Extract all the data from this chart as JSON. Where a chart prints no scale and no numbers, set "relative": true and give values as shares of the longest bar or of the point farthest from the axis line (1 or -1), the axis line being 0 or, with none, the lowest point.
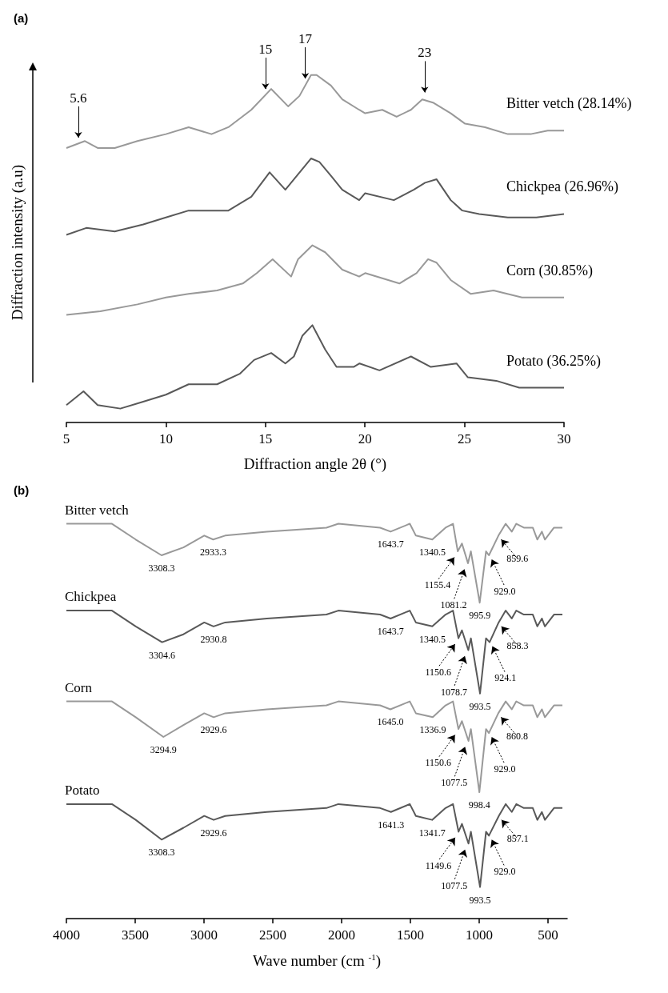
{
  "chart_data": [
    {
      "type": "line",
      "title": "(a)",
      "xlabel": "Diffraction angle 2θ (°)",
      "ylabel": "Diffraction intensity (a.u)",
      "relative": true,
      "xlim": [
        5,
        30
      ],
      "xticks": [
        5,
        10,
        15,
        20,
        25,
        30
      ],
      "series": [
        {
          "name": "Bitter vetch (28.14%)",
          "color": "#999999",
          "x": [
            5,
            5.93,
            6.57,
            7.43,
            8.57,
            10,
            11.14,
            12.29,
            13.14,
            14.29,
            15.29,
            16.14,
            16.71,
            17.29,
            17.57,
            18.29,
            18.86,
            19.71,
            20.01,
            20.87,
            21.59,
            22.31,
            22.88,
            23.45,
            24.31,
            25.03,
            26.03,
            27.18,
            28.32,
            29.18,
            30
          ],
          "values": [
            0.79,
            0.81,
            0.79,
            0.79,
            0.81,
            0.83,
            0.85,
            0.83,
            0.85,
            0.9,
            0.96,
            0.91,
            0.94,
            1.0,
            1.0,
            0.97,
            0.93,
            0.9,
            0.89,
            0.9,
            0.88,
            0.9,
            0.93,
            0.92,
            0.89,
            0.86,
            0.85,
            0.83,
            0.83,
            0.84,
            0.84
          ]
        },
        {
          "name": "Chickpea (26.96%)",
          "color": "#595959",
          "x": [
            5,
            6,
            7.43,
            8.86,
            10,
            11.14,
            12.29,
            13.14,
            14.29,
            15.21,
            16,
            16.43,
            17.29,
            17.71,
            18.29,
            18.86,
            19.71,
            20.01,
            21.45,
            22.45,
            23.02,
            23.6,
            24.31,
            24.89,
            25.74,
            27.18,
            28.61,
            30
          ],
          "values": [
            0.54,
            0.56,
            0.55,
            0.57,
            0.59,
            0.61,
            0.61,
            0.61,
            0.65,
            0.72,
            0.67,
            0.7,
            0.76,
            0.75,
            0.71,
            0.67,
            0.64,
            0.66,
            0.64,
            0.67,
            0.69,
            0.7,
            0.64,
            0.61,
            0.6,
            0.59,
            0.59,
            0.6
          ]
        },
        {
          "name": "Corn (30.85%)",
          "color": "#999999",
          "x": [
            5,
            6.71,
            8.57,
            10,
            11.14,
            12.57,
            13.86,
            14.57,
            15.36,
            16.29,
            16.64,
            17.36,
            18,
            18.86,
            19.71,
            20.01,
            21.73,
            22.59,
            23.17,
            23.6,
            24.31,
            25.32,
            26.46,
            27.89,
            30
          ],
          "values": [
            0.31,
            0.32,
            0.34,
            0.36,
            0.37,
            0.38,
            0.4,
            0.43,
            0.47,
            0.42,
            0.47,
            0.51,
            0.49,
            0.44,
            0.42,
            0.43,
            0.4,
            0.43,
            0.47,
            0.46,
            0.41,
            0.37,
            0.38,
            0.36,
            0.36
          ]
        },
        {
          "name": "Potato (36.25%)",
          "color": "#595959",
          "x": [
            5,
            5.86,
            6.57,
            7.71,
            8.86,
            10,
            11.14,
            12.57,
            13.71,
            14.43,
            15.29,
            16,
            16.43,
            16.86,
            17.36,
            18,
            18.57,
            19.43,
            19.73,
            20.73,
            22.31,
            23.31,
            24.6,
            25.17,
            26.6,
            27.75,
            28.9,
            30
          ],
          "values": [
            0.05,
            0.09,
            0.05,
            0.04,
            0.06,
            0.08,
            0.11,
            0.11,
            0.14,
            0.18,
            0.2,
            0.17,
            0.19,
            0.25,
            0.28,
            0.21,
            0.16,
            0.16,
            0.17,
            0.15,
            0.19,
            0.16,
            0.17,
            0.13,
            0.12,
            0.1,
            0.1,
            0.1
          ]
        }
      ],
      "annotations": [
        {
          "text": "5.6",
          "x": 5.6,
          "y": 0.8
        },
        {
          "text": "15",
          "x": 15,
          "y": 0.94
        },
        {
          "text": "17",
          "x": 17,
          "y": 0.97
        },
        {
          "text": "23",
          "x": 23,
          "y": 0.93
        }
      ]
    },
    {
      "type": "line",
      "title": "(b)",
      "xlabel": "Wave number (cm $^{-1}$)",
      "relative": true,
      "xlim": [
        4000,
        360
      ],
      "xticks": [
        4000,
        3500,
        3000,
        2500,
        2000,
        1500,
        1000,
        500
      ],
      "series": [
        {
          "name": "Bitter vetch",
          "color": "#999999",
          "x": [
            4000,
            3669,
            3496,
            3308.3,
            3149,
            2998,
            2933.3,
            2846,
            2543,
            2110,
            2023,
            1720,
            1643.7,
            1504,
            1460,
            1340.5,
            1244,
            1190,
            1155.4,
            1125,
            1081.2,
            1060,
            995.9,
            950,
            929,
            859.6,
            807,
            763,
            730,
            675,
            610,
            577,
            544,
            522,
            456,
            395
          ],
          "values": [
            1.0,
            1.0,
            0.96,
            0.92,
            0.94,
            0.97,
            0.96,
            0.97,
            0.98,
            0.99,
            1.0,
            0.99,
            0.98,
            1.0,
            0.97,
            0.96,
            0.99,
            1.0,
            0.93,
            0.95,
            0.9,
            0.93,
            0.8,
            0.93,
            0.92,
            0.97,
            1.0,
            0.98,
            1.0,
            0.99,
            0.99,
            0.96,
            0.98,
            0.96,
            0.99,
            0.99
          ]
        },
        {
          "name": "Chickpea",
          "color": "#595959",
          "x": [
            4000,
            3669,
            3496,
            3304.6,
            3149,
            2998,
            2930.8,
            2846,
            2543,
            2110,
            2023,
            1720,
            1643.7,
            1504,
            1460,
            1340.5,
            1244,
            1190,
            1150.6,
            1125,
            1078.7,
            1060,
            993.5,
            950,
            924.1,
            858.3,
            807,
            763,
            730,
            675,
            610,
            577,
            544,
            522,
            456,
            395
          ],
          "values": [
            0.78,
            0.78,
            0.74,
            0.7,
            0.72,
            0.75,
            0.74,
            0.75,
            0.76,
            0.77,
            0.78,
            0.77,
            0.76,
            0.78,
            0.75,
            0.74,
            0.77,
            0.78,
            0.71,
            0.73,
            0.68,
            0.71,
            0.57,
            0.71,
            0.7,
            0.75,
            0.78,
            0.76,
            0.78,
            0.77,
            0.77,
            0.74,
            0.76,
            0.74,
            0.77,
            0.77
          ]
        },
        {
          "name": "Corn",
          "color": "#999999",
          "x": [
            4000,
            3669,
            3496,
            3294.9,
            3149,
            2998,
            2929.6,
            2846,
            2543,
            2110,
            2023,
            1720,
            1645.0,
            1504,
            1460,
            1336.9,
            1244,
            1190,
            1150.6,
            1125,
            1077.5,
            1060,
            998.4,
            950,
            929,
            860.8,
            807,
            763,
            730,
            675,
            610,
            577,
            544,
            522,
            456,
            395
          ],
          "values": [
            0.55,
            0.55,
            0.51,
            0.46,
            0.49,
            0.52,
            0.51,
            0.52,
            0.53,
            0.54,
            0.55,
            0.54,
            0.53,
            0.55,
            0.52,
            0.51,
            0.54,
            0.55,
            0.48,
            0.5,
            0.45,
            0.48,
            0.32,
            0.48,
            0.47,
            0.52,
            0.55,
            0.53,
            0.55,
            0.54,
            0.54,
            0.51,
            0.53,
            0.51,
            0.54,
            0.54
          ]
        },
        {
          "name": "Potato",
          "color": "#595959",
          "x": [
            4000,
            3669,
            3496,
            3308.3,
            3149,
            2998,
            2929.6,
            2846,
            2543,
            2110,
            2023,
            1720,
            1641.3,
            1504,
            1460,
            1341.7,
            1244,
            1190,
            1149.6,
            1125,
            1077.5,
            1060,
            993.5,
            950,
            929,
            857.1,
            807,
            763,
            730,
            675,
            610,
            577,
            544,
            522,
            456,
            395
          ],
          "values": [
            0.29,
            0.29,
            0.25,
            0.2,
            0.23,
            0.26,
            0.25,
            0.26,
            0.27,
            0.28,
            0.29,
            0.28,
            0.27,
            0.29,
            0.26,
            0.25,
            0.28,
            0.29,
            0.22,
            0.24,
            0.19,
            0.22,
            0.08,
            0.22,
            0.21,
            0.26,
            0.29,
            0.27,
            0.29,
            0.28,
            0.28,
            0.25,
            0.27,
            0.25,
            0.28,
            0.28
          ]
        }
      ],
      "annotations": [
        {
          "text": "3308.3",
          "x": 3308.3,
          "y": 0.92
        },
        {
          "text": "2933.3",
          "x": 2933.3,
          "y": 0.96
        },
        {
          "text": "1643.7",
          "x": 1643.7,
          "y": 0.98
        },
        {
          "text": "1340.5",
          "x": 1340.5,
          "y": 0.96
        },
        {
          "text": "1155.4",
          "x": 1155.4,
          "y": 0.93
        },
        {
          "text": "1081.2",
          "x": 1081.2,
          "y": 0.9
        },
        {
          "text": "995.9",
          "x": 995.9,
          "y": 0.8
        },
        {
          "text": "929.0",
          "x": 929,
          "y": 0.92
        },
        {
          "text": "859.6",
          "x": 859.6,
          "y": 0.97
        },
        {
          "text": "3304.6",
          "x": 3304.6,
          "y": 0.7
        },
        {
          "text": "2930.8",
          "x": 2930.8,
          "y": 0.74
        },
        {
          "text": "1643.7",
          "x": 1643.7,
          "y": 0.76
        },
        {
          "text": "1340.5",
          "x": 1340.5,
          "y": 0.74
        },
        {
          "text": "1150.6",
          "x": 1150.6,
          "y": 0.71
        },
        {
          "text": "1078.7",
          "x": 1078.7,
          "y": 0.68
        },
        {
          "text": "993.5",
          "x": 993.5,
          "y": 0.57
        },
        {
          "text": "924.1",
          "x": 924.1,
          "y": 0.7
        },
        {
          "text": "858.3",
          "x": 858.3,
          "y": 0.75
        },
        {
          "text": "3294.9",
          "x": 3294.9,
          "y": 0.46
        },
        {
          "text": "2929.6",
          "x": 2929.6,
          "y": 0.51
        },
        {
          "text": "1645.0",
          "x": 1645.0,
          "y": 0.53
        },
        {
          "text": "1336.9",
          "x": 1336.9,
          "y": 0.51
        },
        {
          "text": "1150.6",
          "x": 1150.6,
          "y": 0.48
        },
        {
          "text": "1077.5",
          "x": 1077.5,
          "y": 0.45
        },
        {
          "text": "998.4",
          "x": 998.4,
          "y": 0.32
        },
        {
          "text": "929.0",
          "x": 929,
          "y": 0.47
        },
        {
          "text": "860.8",
          "x": 860.8,
          "y": 0.52
        },
        {
          "text": "3308.3",
          "x": 3308.3,
          "y": 0.2
        },
        {
          "text": "2929.6",
          "x": 2929.6,
          "y": 0.25
        },
        {
          "text": "1641.3",
          "x": 1641.3,
          "y": 0.27
        },
        {
          "text": "1341.7",
          "x": 1341.7,
          "y": 0.25
        },
        {
          "text": "1149.6",
          "x": 1149.6,
          "y": 0.22
        },
        {
          "text": "1077.5",
          "x": 1077.5,
          "y": 0.19
        },
        {
          "text": "993.5",
          "x": 993.5,
          "y": 0.08
        },
        {
          "text": "929.0",
          "x": 929,
          "y": 0.21
        },
        {
          "text": "857.1",
          "x": 857.1,
          "y": 0.26
        }
      ]
    }
  ]
}
